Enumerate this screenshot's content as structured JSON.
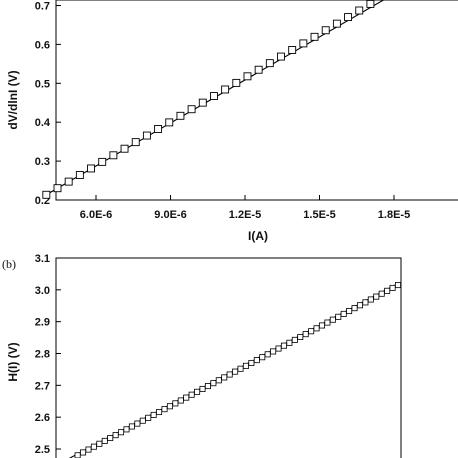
{
  "chart_data": [
    {
      "type": "scatter",
      "panel_label": "",
      "xlabel": "I(A)",
      "ylabel": "dV/dlnI (V)",
      "xlim": [
        3.9e-06,
        1.98e-05
      ],
      "ylim": [
        0.2,
        0.72
      ],
      "x_ticks": [
        6e-06,
        9e-06,
        1.2e-05,
        1.5e-05,
        1.8e-05
      ],
      "x_tick_labels": [
        "6.0E-6",
        "9.0E-6",
        "1.2E-5",
        "1.5E-5",
        "1.8E-5"
      ],
      "y_ticks": [
        0.2,
        0.3,
        0.4,
        0.5,
        0.6,
        0.7
      ],
      "y_tick_labels": [
        "0.2",
        "0.3",
        "0.4",
        "0.5",
        "0.6",
        "0.7"
      ],
      "marker": "open-square",
      "fit_line": {
        "x": [
          3.9e-06,
          1.76e-05
        ],
        "y": [
          0.21,
          0.715
        ]
      },
      "points": {
        "x_start": 4e-06,
        "x_step": 4.5e-07,
        "count": 31,
        "y_intercept": 0.063,
        "slope": 37600
      },
      "grid": false
    },
    {
      "type": "scatter",
      "panel_label": "(b)",
      "xlabel": "",
      "ylabel": "H(I) (V)",
      "ylim": [
        2.45,
        3.1
      ],
      "y_ticks": [
        2.5,
        2.6,
        2.7,
        2.8,
        2.9,
        3.0,
        3.1
      ],
      "y_tick_labels": [
        "2.5",
        "2.6",
        "2.7",
        "2.8",
        "2.9",
        "3.0",
        "3.1"
      ],
      "marker": "open-square",
      "fit_line": {
        "x": [
          0,
          1
        ],
        "y": [
          2.455,
          3.02
        ]
      },
      "points": {
        "count": 62,
        "y_start": 2.462,
        "y_end": 3.015
      },
      "grid": false
    }
  ]
}
